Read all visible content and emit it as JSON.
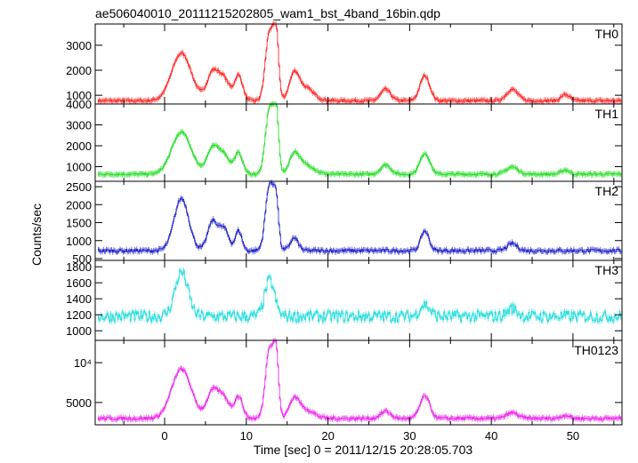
{
  "chart_data": {
    "type": "line",
    "title": "ae506040010_20111215202805_wam1_bst_4band_16bin.qdp",
    "xlabel": "Time [sec] 0 = 2011/12/15 20:28:05.703",
    "ylabel": "Counts/sec",
    "xlim": [
      -8.5,
      56
    ],
    "x_ticks": [
      0,
      10,
      20,
      30,
      40,
      50
    ],
    "panels": [
      {
        "name": "TH0",
        "color": "#ff2222",
        "ylim": [
          650,
          3850
        ],
        "y_ticks": [
          1000,
          2000,
          3000
        ],
        "y_tick_labels": [
          "1000",
          "2000",
          "3000"
        ],
        "baseline": 780,
        "noise": 50,
        "peaks": [
          [
            2.0,
            1.2,
            1900
          ],
          [
            5.8,
            0.7,
            1100
          ],
          [
            7.2,
            0.7,
            850
          ],
          [
            9.0,
            0.5,
            1000
          ],
          [
            12.8,
            0.5,
            2800
          ],
          [
            13.6,
            0.3,
            2400
          ],
          [
            15.8,
            0.6,
            1000
          ],
          [
            17.2,
            1.0,
            500
          ],
          [
            27.0,
            0.6,
            450
          ],
          [
            31.8,
            0.6,
            1000
          ],
          [
            42.5,
            0.7,
            450
          ],
          [
            49.0,
            0.5,
            250
          ]
        ]
      },
      {
        "name": "TH1",
        "color": "#22dd22",
        "ylim": [
          300,
          4000
        ],
        "y_ticks": [
          1000,
          2000,
          3000,
          4000
        ],
        "y_tick_labels": [
          "1000",
          "2000",
          "3000",
          "4000"
        ],
        "baseline": 640,
        "noise": 50,
        "peaks": [
          [
            2.0,
            1.2,
            2000
          ],
          [
            5.8,
            0.7,
            1200
          ],
          [
            7.2,
            0.7,
            900
          ],
          [
            9.0,
            0.5,
            1000
          ],
          [
            12.8,
            0.5,
            3200
          ],
          [
            13.6,
            0.3,
            2700
          ],
          [
            15.8,
            0.6,
            900
          ],
          [
            17.2,
            1.0,
            450
          ],
          [
            27.0,
            0.6,
            450
          ],
          [
            31.8,
            0.6,
            1000
          ],
          [
            42.5,
            0.7,
            350
          ],
          [
            49.0,
            0.5,
            200
          ]
        ]
      },
      {
        "name": "TH2",
        "color": "#2222cc",
        "ylim": [
          450,
          2650
        ],
        "y_ticks": [
          500,
          1000,
          1500,
          2000,
          2500
        ],
        "y_tick_labels": [
          "500",
          "1000",
          "1500",
          "2000",
          "2500"
        ],
        "baseline": 720,
        "noise": 45,
        "peaks": [
          [
            2.0,
            0.9,
            1450
          ],
          [
            5.8,
            0.6,
            800
          ],
          [
            7.2,
            0.6,
            600
          ],
          [
            9.0,
            0.4,
            550
          ],
          [
            12.8,
            0.5,
            1850
          ],
          [
            13.6,
            0.3,
            1200
          ],
          [
            15.8,
            0.5,
            350
          ],
          [
            31.8,
            0.5,
            550
          ],
          [
            42.5,
            0.6,
            200
          ]
        ]
      },
      {
        "name": "TH3",
        "color": "#22dddd",
        "ylim": [
          880,
          1880
        ],
        "y_ticks": [
          1000,
          1200,
          1400,
          1600,
          1800
        ],
        "y_tick_labels": [
          "1000",
          "1200",
          "1400",
          "1600",
          "1800"
        ],
        "baseline": 1180,
        "noise": 70,
        "peaks": [
          [
            2.0,
            0.8,
            550
          ],
          [
            12.8,
            0.6,
            450
          ],
          [
            31.8,
            0.6,
            150
          ],
          [
            42.5,
            0.6,
            100
          ]
        ]
      },
      {
        "name": "TH0123",
        "color": "#ee22ee",
        "ylim": [
          2200,
          12800
        ],
        "y_ticks": [
          5000,
          10000
        ],
        "y_tick_labels": [
          "5000",
          "10⁴"
        ],
        "baseline": 3000,
        "noise": 180,
        "peaks": [
          [
            2.0,
            1.2,
            6200
          ],
          [
            5.8,
            0.7,
            3300
          ],
          [
            7.2,
            0.7,
            2500
          ],
          [
            9.0,
            0.5,
            2700
          ],
          [
            12.8,
            0.5,
            9000
          ],
          [
            13.6,
            0.3,
            7000
          ],
          [
            15.8,
            0.6,
            2300
          ],
          [
            17.2,
            1.0,
            1100
          ],
          [
            27.0,
            0.6,
            900
          ],
          [
            31.8,
            0.6,
            2800
          ],
          [
            42.5,
            0.7,
            700
          ],
          [
            49.0,
            0.5,
            400
          ]
        ]
      }
    ]
  }
}
